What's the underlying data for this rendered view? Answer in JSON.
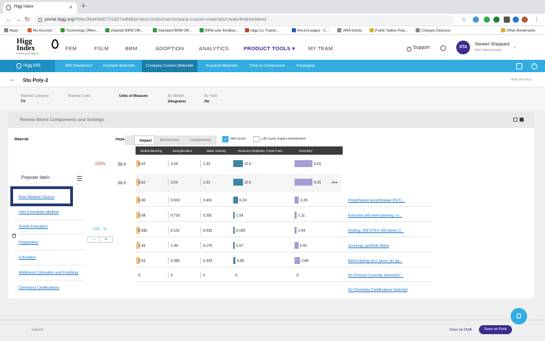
{
  "browser": {
    "tab_title": "Higg Index",
    "url_domain": "portal.higg.org",
    "url_path": "/59fa199a438d2701827adfd6/product-tools/msi/company-custom-materials/create/finalize/blend",
    "bookmarks": [
      "Apps",
      "My Account",
      "Technology Office...",
      "Zalando BRM Offi...",
      "Standard BRM Off...",
      "BRM user feedbac...",
      "Higg Co Trainin...",
      "Recent pages - C...",
      "JIRA tickets",
      "Public Safety Pow...",
      "Charges Debussy",
      "Other Bookmarks"
    ]
  },
  "app": {
    "logo_text": "Higg\nIndex",
    "logo_powered": "Powered by Higg Co",
    "nav": [
      "FEM",
      "FSLM",
      "BRM",
      "ADOPTION",
      "ANALYTICS",
      "PRODUCT TOOLS",
      "MY TEAM"
    ],
    "support": "Support",
    "avatar_initials": "STA",
    "user_name": "Stewart Sheppard",
    "user_org": "SAC Test Account"
  },
  "subnav": {
    "brand": "Higg MSI",
    "items": [
      "MSI Dashboard",
      "Example Materials",
      "Company Custom Materials",
      "Acquired Materials",
      "Trims & Components",
      "Packaging"
    ]
  },
  "page": {
    "title": "Stu Poly-2",
    "hide_details": "HIDE DETAILS",
    "meta": [
      {
        "label": "Material Category",
        "value": "TX"
      },
      {
        "label": "Material Code",
        "value": ""
      },
      {
        "label": "Units of Measure",
        "value": ""
      },
      {
        "label": "By Weight",
        "value": "kilograms"
      },
      {
        "label": "By Yield",
        "value": "No"
      }
    ],
    "section_title": "Review Blend Components and Settings"
  },
  "blend": {
    "material_header": "Material",
    "impact_header": "Impact",
    "toggle": [
      "Impact",
      "Benchmark",
      "Components"
    ],
    "msi_score_label": "MSI Score",
    "lcia_label": "Life Cycle Impact Assessment",
    "columns": [
      "Global Warming",
      "Eutrophication",
      "Water Scarcity",
      "Resource Depletion, Fossil Fuels",
      "Chemistry"
    ],
    "blend_percent": "100%",
    "material_name": "Polyester fabric",
    "total_impact_a": "36.0",
    "total_impact_b": "36.0",
    "percent_input": "100",
    "percent_sign": "%",
    "minus": "-",
    "plus": "+",
    "more": "•••",
    "totals": [
      "9.62",
      "3.24",
      "1.32",
      "12.6",
      "9.29"
    ],
    "stages": [
      {
        "label": "Raw Material Source",
        "values": [
          "3.30",
          "0.563",
          "0.491",
          "6.24",
          "2.29"
        ],
        "link": "Polyethylene terephthalate (PET)..."
      },
      {
        "label": "Yarn Formation Method",
        "values": [
          "2.08",
          "0.718",
          "0.291",
          "1.59",
          "1.11"
        ],
        "link": "Extrusion and melt-spinning, co..."
      },
      {
        "label": "Textile Formation",
        "values": [
          "0.281",
          "0.121",
          "0.032",
          "0.169",
          "1.04"
        ],
        "link": "Knitting, 200 DTEX-180 denier 3..."
      },
      {
        "label": "Preparation",
        "values": [
          "1.43",
          "1.44",
          "0.176",
          "1.57",
          "2.01"
        ],
        "link": "Scouring, synthetic fibers"
      },
      {
        "label": "Coloration",
        "values": [
          "2.53",
          "0.396",
          "0.329",
          "3.00",
          "2.84"
        ],
        "link": "Batch dyeing (incl. piece, jet, jig..."
      },
      {
        "label": "Additional Coloration and Finishing",
        "values": [
          "0",
          "0",
          "0",
          "0",
          "0"
        ],
        "link": "No Process Currently Selected f..."
      },
      {
        "label": "Chemistry Certifications",
        "values": [],
        "link": "No Chemistry Certifications Selected"
      }
    ]
  },
  "footer": {
    "cancel": "Cancel",
    "save_draft": "Save as Draft",
    "save_final": "Save as Final"
  },
  "colors": {
    "global_warming": "#f2c08a",
    "eutrophication": "#c9c9c9",
    "water_scarcity": "#c9c9c9",
    "fossil": "#3e86a3",
    "chemistry": "#a99bd4",
    "brand": "#3a2d8f",
    "accent": "#33ade1"
  }
}
